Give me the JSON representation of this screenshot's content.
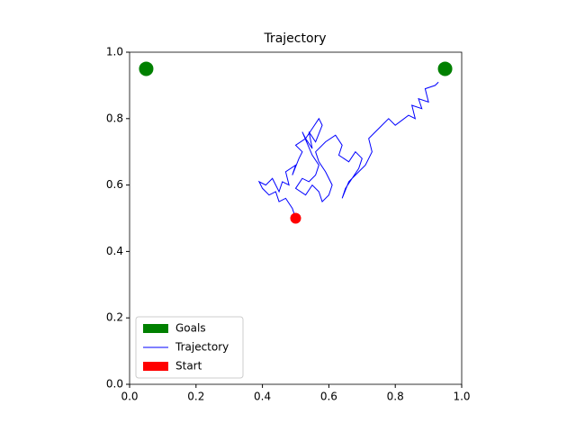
{
  "chart_data": {
    "type": "line",
    "title": "Trajectory",
    "xlim": [
      0,
      1
    ],
    "ylim": [
      0,
      1
    ],
    "xticks": [
      {
        "value": 0,
        "label": "0.0"
      },
      {
        "value": 0.2,
        "label": "0.2"
      },
      {
        "value": 0.4,
        "label": "0.4"
      },
      {
        "value": 0.6,
        "label": "0.6"
      },
      {
        "value": 0.8,
        "label": "0.8"
      },
      {
        "value": 1,
        "label": "1.0"
      }
    ],
    "yticks": [
      {
        "value": 0,
        "label": "0.0"
      },
      {
        "value": 0.2,
        "label": "0.2"
      },
      {
        "value": 0.4,
        "label": "0.4"
      },
      {
        "value": 0.6,
        "label": "0.6"
      },
      {
        "value": 0.8,
        "label": "0.8"
      },
      {
        "value": 1,
        "label": "1.0"
      }
    ],
    "legend": "lower left",
    "series": [
      {
        "name": "Goals",
        "kind": "scatter",
        "color": "green",
        "x": [
          0.05,
          0.95
        ],
        "y": [
          0.95,
          0.95
        ]
      },
      {
        "name": "Trajectory",
        "kind": "line",
        "color": "blue",
        "x": [
          0.5,
          0.49,
          0.47,
          0.45,
          0.44,
          0.42,
          0.4,
          0.39,
          0.41,
          0.43,
          0.45,
          0.46,
          0.48,
          0.47,
          0.5,
          0.49,
          0.51,
          0.52,
          0.5,
          0.53,
          0.55,
          0.54,
          0.56,
          0.58,
          0.57,
          0.55,
          0.53,
          0.52,
          0.55,
          0.57,
          0.56,
          0.54,
          0.52,
          0.5,
          0.53,
          0.55,
          0.57,
          0.58,
          0.6,
          0.61,
          0.59,
          0.57,
          0.56,
          0.59,
          0.62,
          0.64,
          0.63,
          0.66,
          0.68,
          0.7,
          0.69,
          0.67,
          0.65,
          0.64,
          0.66,
          0.68,
          0.71,
          0.73,
          0.72,
          0.75,
          0.78,
          0.8,
          0.84,
          0.86,
          0.85,
          0.88,
          0.87,
          0.9,
          0.89,
          0.92,
          0.93
        ],
        "y": [
          0.5,
          0.53,
          0.56,
          0.55,
          0.58,
          0.57,
          0.59,
          0.61,
          0.6,
          0.62,
          0.58,
          0.61,
          0.6,
          0.64,
          0.66,
          0.63,
          0.68,
          0.7,
          0.72,
          0.74,
          0.71,
          0.76,
          0.73,
          0.78,
          0.8,
          0.77,
          0.74,
          0.76,
          0.69,
          0.66,
          0.63,
          0.61,
          0.62,
          0.59,
          0.57,
          0.6,
          0.58,
          0.55,
          0.57,
          0.6,
          0.64,
          0.67,
          0.7,
          0.73,
          0.75,
          0.72,
          0.69,
          0.67,
          0.7,
          0.68,
          0.65,
          0.62,
          0.59,
          0.56,
          0.61,
          0.63,
          0.66,
          0.7,
          0.74,
          0.77,
          0.8,
          0.78,
          0.81,
          0.8,
          0.84,
          0.83,
          0.86,
          0.85,
          0.89,
          0.9,
          0.91
        ]
      },
      {
        "name": "Start",
        "kind": "scatter",
        "color": "red",
        "x": [
          0.5
        ],
        "y": [
          0.5
        ]
      }
    ]
  }
}
